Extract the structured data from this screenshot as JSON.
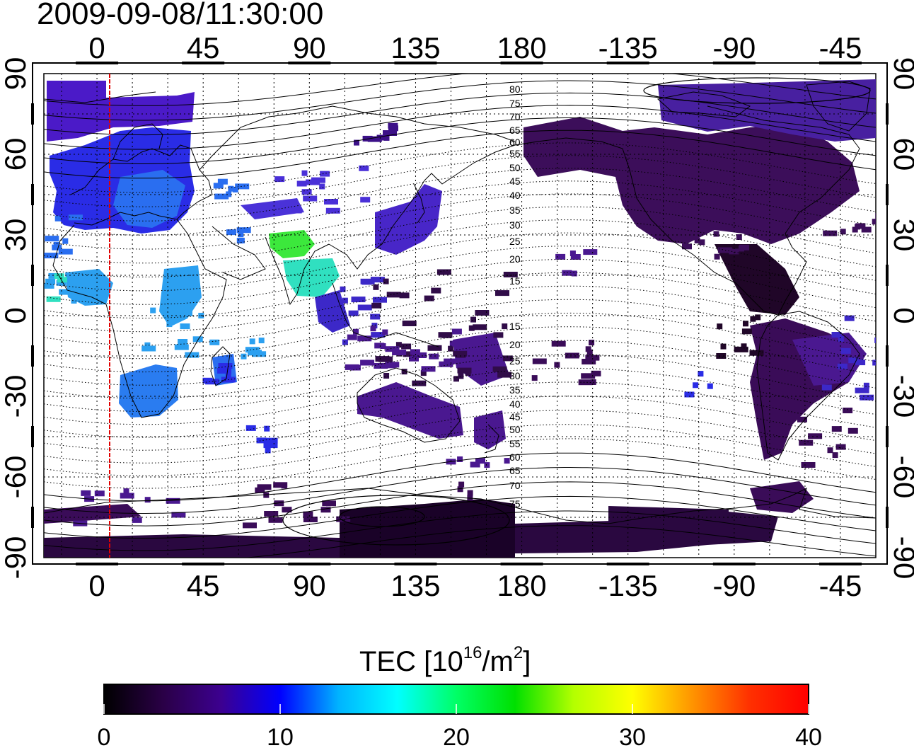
{
  "title": "2009-09-08/11:30:00",
  "map": {
    "lon_ticks": [
      "0",
      "45",
      "90",
      "135",
      "180",
      "-135",
      "-90",
      "-45"
    ],
    "lat_ticks": [
      "90",
      "60",
      "30",
      "0",
      "-30",
      "-60",
      "-90"
    ],
    "contour_labels_north": [
      "80",
      "75",
      "70",
      "65",
      "60",
      "55",
      "50",
      "45",
      "40",
      "35",
      "30",
      "25",
      "20",
      "15"
    ],
    "contour_labels_south": [
      "15",
      "20",
      "25",
      "30",
      "35",
      "40",
      "45",
      "50",
      "55",
      "60",
      "65",
      "70",
      "75"
    ],
    "marker_color": "#e00000"
  },
  "colorbar": {
    "label_main": "TEC  [10",
    "label_sup1": "16",
    "label_mid": "/m",
    "label_sup2": "2",
    "label_end": "]",
    "ticks": [
      "0",
      "10",
      "20",
      "30",
      "40"
    ],
    "range": [
      0,
      40
    ],
    "stops": [
      "#000000",
      "#2a0046",
      "#3c0090",
      "#0000ff",
      "#00b4ff",
      "#00ffff",
      "#00ff66",
      "#00e000",
      "#b4ff00",
      "#ffff00",
      "#ff9600",
      "#ff3000",
      "#ff0000"
    ]
  },
  "regions": [
    {
      "name": "europe",
      "color": "#2a2ce6"
    },
    {
      "name": "north-atlantic",
      "color": "#4b1ac8"
    },
    {
      "name": "africa",
      "color": "#2ca0f0"
    },
    {
      "name": "india",
      "color": "#3ce83c"
    },
    {
      "name": "east-asia",
      "color": "#4826c8"
    },
    {
      "name": "australia",
      "color": "#4a1890"
    },
    {
      "name": "north-america",
      "color": "#3c0e5a"
    },
    {
      "name": "south-america",
      "color": "#3a0c58"
    },
    {
      "name": "antarctica",
      "color": "#1a0228"
    }
  ]
}
